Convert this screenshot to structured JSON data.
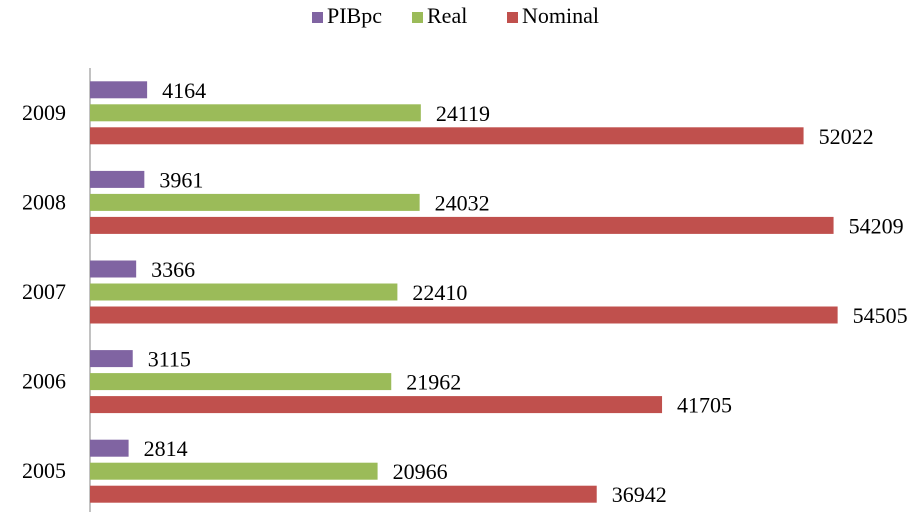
{
  "chart_data": {
    "type": "hbar",
    "categories": [
      "2009",
      "2008",
      "2007",
      "2006",
      "2005"
    ],
    "series": [
      {
        "name": "PIBpc",
        "color": "#8064a2",
        "values": [
          4164,
          3961,
          3366,
          3115,
          2814
        ]
      },
      {
        "name": "Real",
        "color": "#9bbb59",
        "values": [
          24119,
          24032,
          22410,
          21962,
          20966
        ]
      },
      {
        "name": "Nominal",
        "color": "#c0504d",
        "values": [
          52022,
          54209,
          54505,
          41705,
          36942
        ]
      }
    ],
    "xlim": [
      0,
      60000
    ],
    "legend": "top"
  }
}
